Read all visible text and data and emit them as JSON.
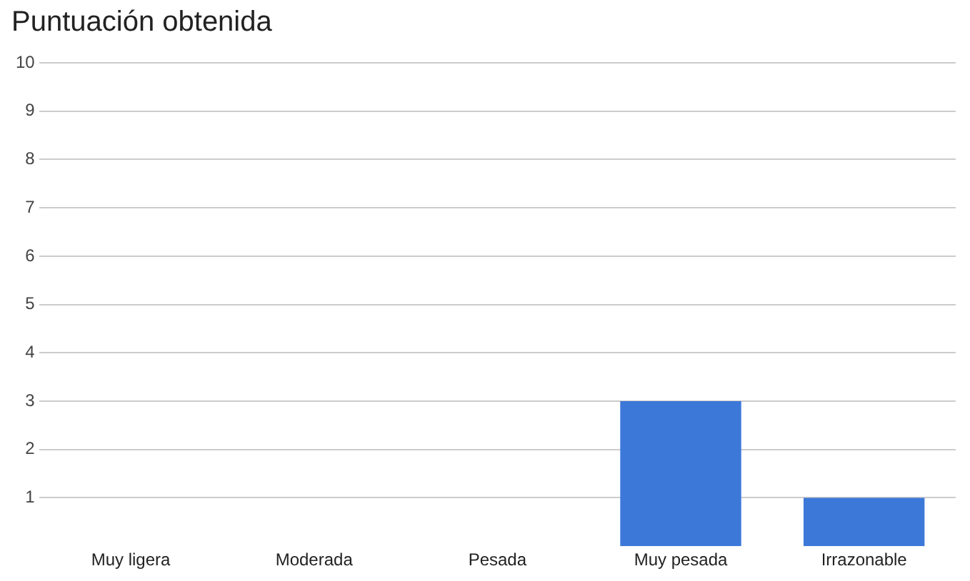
{
  "chart_data": {
    "type": "bar",
    "title": "Puntuación obtenida",
    "categories": [
      "Muy ligera",
      "Moderada",
      "Pesada",
      "Muy pesada",
      "Irrazonable"
    ],
    "values": [
      0,
      0,
      0,
      3,
      1
    ],
    "color": "#3c78d8",
    "ylim": [
      0,
      10
    ],
    "yticks": [
      1,
      2,
      3,
      4,
      5,
      6,
      7,
      8,
      9,
      10
    ],
    "grid": "y"
  }
}
